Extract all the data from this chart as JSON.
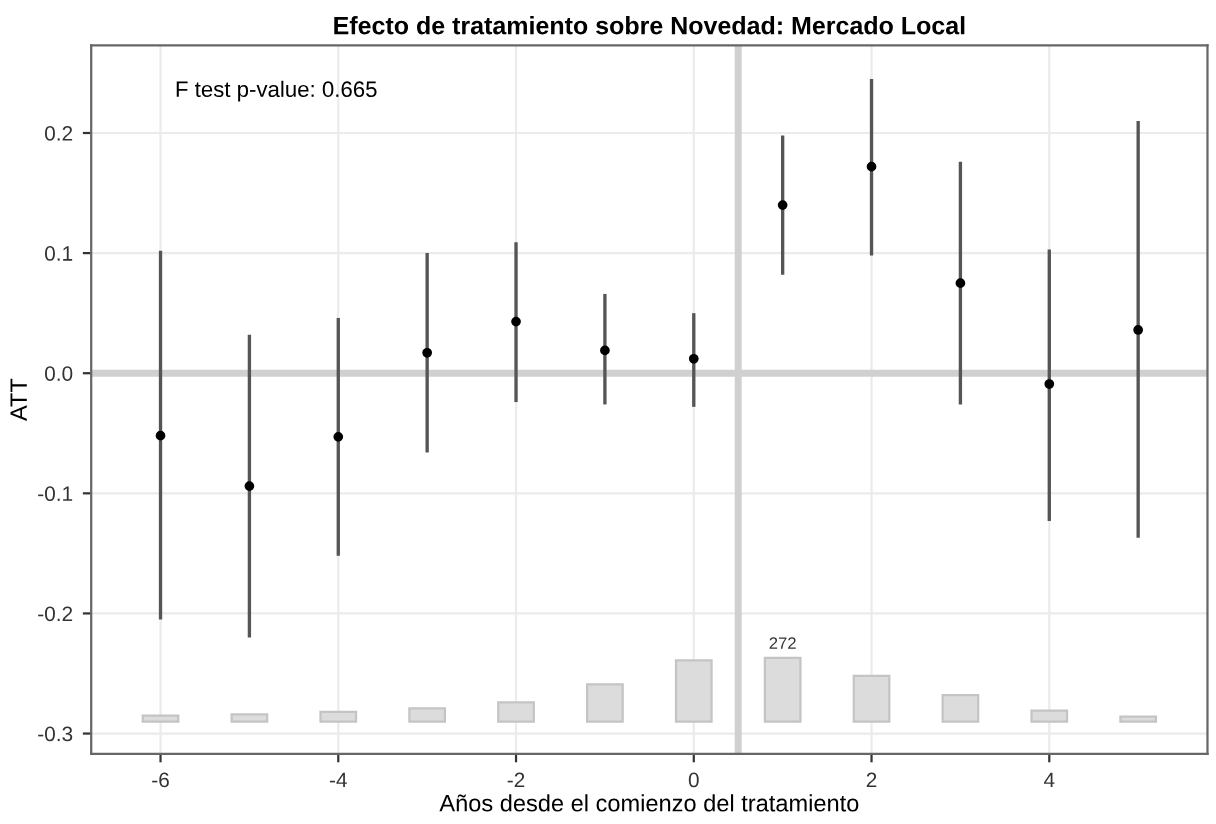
{
  "chart_data": {
    "type": "scatter",
    "title": "Efecto de tratamiento sobre Novedad: Mercado Local",
    "xlabel": "Años desde el comienzo del tratamiento",
    "ylabel": "ATT",
    "annotations": [
      "F test p-value: 0.665",
      {
        "text": "272",
        "x": 1,
        "y": -0.237
      }
    ],
    "series": [
      {
        "type": "bar",
        "color": "#dcdcdc",
        "x": [
          -6,
          -5,
          -4,
          -3,
          -2,
          -1,
          0,
          1,
          2,
          3,
          4,
          5
        ],
        "base": [
          -0.29,
          -0.29,
          -0.29,
          -0.29,
          -0.29,
          -0.29,
          -0.29,
          -0.29,
          -0.29,
          -0.29,
          -0.29,
          -0.29
        ],
        "values": [
          0.005,
          0.006,
          0.008,
          0.011,
          0.016,
          0.031,
          0.051,
          0.053,
          0.038,
          0.022,
          0.009,
          0.004
        ]
      },
      {
        "color": "#000000",
        "x": [
          -6,
          -5,
          -4,
          -3,
          -2,
          -1,
          0,
          1,
          2,
          3,
          4,
          5
        ],
        "values": [
          -0.052,
          -0.094,
          -0.053,
          0.017,
          0.043,
          0.019,
          0.012,
          0.14,
          0.172,
          0.075,
          -0.009,
          0.036
        ],
        "errors": [
          [
            -0.205,
            0.102
          ],
          [
            -0.22,
            0.032
          ],
          [
            -0.152,
            0.046
          ],
          [
            -0.066,
            0.1
          ],
          [
            -0.024,
            0.109
          ],
          [
            -0.026,
            0.066
          ],
          [
            -0.028,
            0.05
          ],
          [
            0.082,
            0.198
          ],
          [
            0.098,
            0.245
          ],
          [
            -0.026,
            0.176
          ],
          [
            -0.123,
            0.103
          ],
          [
            -0.137,
            0.21
          ]
        ]
      }
    ],
    "xlim": [
      -6.78,
      5.78
    ],
    "xticks": [
      -6,
      -4,
      -2,
      0,
      2,
      4
    ],
    "ylim": [
      -0.317,
      0.273
    ],
    "yticks": [
      -0.3,
      -0.2,
      -0.1,
      {
        "value": 0,
        "label": "0.0"
      },
      0.1,
      0.2
    ],
    "ref_lines": [
      {
        "axis": "y",
        "value": 0,
        "color": "#d0d0d0"
      },
      {
        "axis": "x",
        "value": 0.5,
        "color": "#d0d0d0"
      }
    ],
    "grid": true,
    "marker": "circle"
  }
}
